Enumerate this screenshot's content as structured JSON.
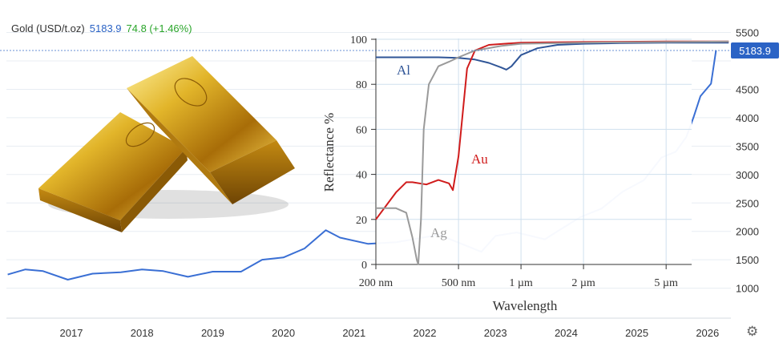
{
  "header": {
    "label": "Gold (USD/t.oz)",
    "price": "5183.9",
    "change": "74.8 (+1.46%)"
  },
  "settings_icon": "gear-icon",
  "colors": {
    "price_line": "#3a6fd4",
    "price_badge": "#2b63c5",
    "change_positive": "#2aa52a",
    "gridline": "#e8edf3",
    "al": "#2f5597",
    "au": "#d01c1c",
    "ag": "#9a9a9a"
  },
  "chart_data": [
    {
      "type": "line",
      "title": "",
      "series": [
        {
          "name": "Gold (USD/t.oz)",
          "last_value": 5183.9
        }
      ],
      "x_ticks": [
        "2017",
        "2018",
        "2019",
        "2020",
        "2021",
        "2022",
        "2023",
        "2024",
        "2025",
        "2026"
      ],
      "y_ticks": [
        1000,
        1500,
        2000,
        2500,
        3000,
        3500,
        4000,
        4500,
        5000,
        5500
      ],
      "ylim": [
        1000,
        5500
      ],
      "y_axis_side": "right",
      "price_label": "5183.9",
      "points": [
        [
          2016.1,
          1240
        ],
        [
          2016.35,
          1330
        ],
        [
          2016.6,
          1300
        ],
        [
          2016.95,
          1150
        ],
        [
          2017.3,
          1255
        ],
        [
          2017.7,
          1280
        ],
        [
          2018.0,
          1330
        ],
        [
          2018.3,
          1300
        ],
        [
          2018.65,
          1200
        ],
        [
          2019.0,
          1290
        ],
        [
          2019.4,
          1290
        ],
        [
          2019.7,
          1500
        ],
        [
          2020.0,
          1540
        ],
        [
          2020.3,
          1700
        ],
        [
          2020.6,
          2020
        ],
        [
          2020.8,
          1890
        ],
        [
          2021.2,
          1780
        ],
        [
          2021.6,
          1810
        ],
        [
          2022.2,
          1940
        ],
        [
          2022.5,
          1790
        ],
        [
          2022.8,
          1640
        ],
        [
          2023.0,
          1920
        ],
        [
          2023.3,
          1980
        ],
        [
          2023.7,
          1860
        ],
        [
          2023.85,
          1980
        ],
        [
          2024.2,
          2250
        ],
        [
          2024.5,
          2400
        ],
        [
          2024.8,
          2700
        ],
        [
          2025.1,
          2900
        ],
        [
          2025.35,
          3300
        ],
        [
          2025.55,
          3400
        ],
        [
          2025.7,
          3660
        ],
        [
          2025.8,
          4000
        ],
        [
          2025.9,
          4380
        ],
        [
          2026.05,
          4600
        ],
        [
          2026.12,
          5183.9
        ]
      ]
    },
    {
      "type": "line",
      "title": "",
      "xlabel": "Wavelength",
      "ylabel": "Reflectance %",
      "x_scale": "log",
      "x_tick_labels": [
        "200 nm",
        "500 nm",
        "1 µm",
        "2 µm",
        "5 µm"
      ],
      "x_tick_values_nm": [
        200,
        500,
        1000,
        2000,
        5000
      ],
      "xlim_nm": [
        200,
        10000
      ],
      "y_ticks": [
        0,
        20,
        40,
        60,
        80,
        100
      ],
      "ylim": [
        0,
        100
      ],
      "grid": true,
      "series": [
        {
          "name": "Al",
          "color": "#2f5597",
          "x": [
            200,
            300,
            400,
            500,
            600,
            700,
            800,
            850,
            900,
            1000,
            1200,
            1500,
            2000,
            3000,
            5000,
            10000
          ],
          "y": [
            92,
            92,
            92,
            91.7,
            91,
            89.5,
            87.5,
            86.5,
            88,
            93,
            96,
            97.5,
            98,
            98.3,
            98.5,
            98.5
          ]
        },
        {
          "name": "Au",
          "color": "#d01c1c",
          "x": [
            200,
            250,
            280,
            300,
            350,
            400,
            450,
            470,
            500,
            550,
            600,
            700,
            1000,
            2000,
            5000,
            10000
          ],
          "y": [
            20,
            32,
            36.5,
            36.5,
            35.5,
            37.5,
            36,
            33,
            48,
            87,
            95,
            97.5,
            98.5,
            98.8,
            99,
            99
          ]
        },
        {
          "name": "Ag",
          "color": "#9a9a9a",
          "x": [
            200,
            250,
            280,
            300,
            315,
            320,
            330,
            340,
            360,
            400,
            450,
            500,
            600,
            800,
            1000,
            2000,
            5000,
            10000
          ],
          "y": [
            25,
            25,
            23,
            12,
            2,
            0,
            20,
            60,
            80,
            88,
            90,
            92,
            95,
            97,
            98,
            98.5,
            98.8,
            99
          ]
        }
      ]
    }
  ]
}
